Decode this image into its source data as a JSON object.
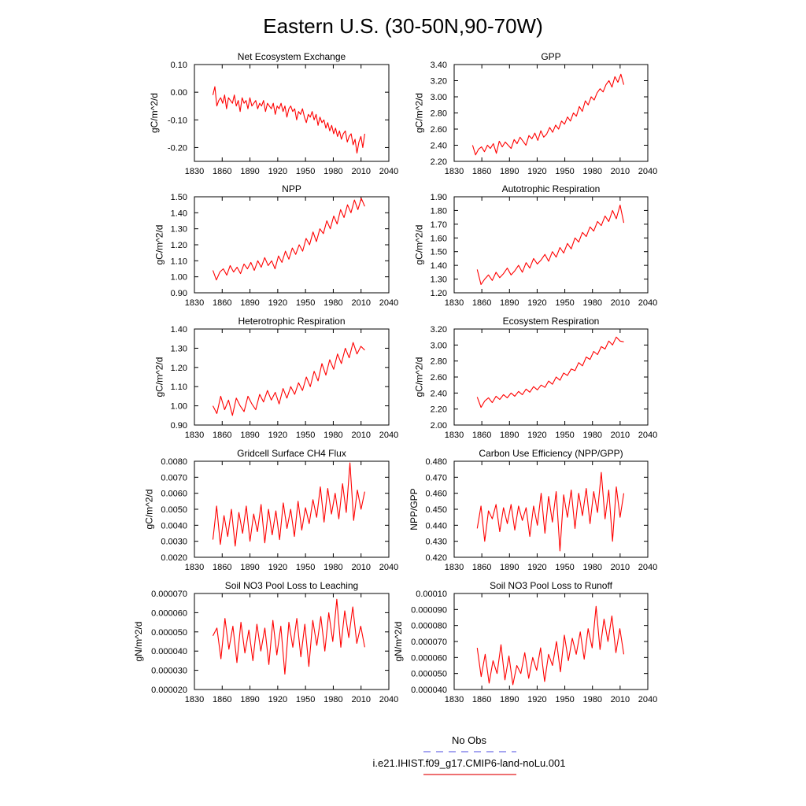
{
  "title": "Eastern U.S. (30-50N,90-70W)",
  "legend": {
    "entries": [
      {
        "label": "No Obs",
        "color": "#6f6fe6",
        "style": "dashed"
      },
      {
        "label": "i.e21.IHIST.f09_g17.CMIP6-land-noLu.001",
        "color": "#e41a1c",
        "style": "solid"
      }
    ]
  },
  "chart_data": [
    {
      "type": "line",
      "title": "Net Ecosystem Exchange",
      "ylabel": "gC/m^2/d",
      "xlim": [
        1830,
        2040
      ],
      "ylim": [
        -0.25,
        0.1
      ],
      "xticks": [
        "1830",
        "1860",
        "1890",
        "1920",
        "1950",
        "1980",
        "2010",
        "2040"
      ],
      "yticks": [
        "-0.20",
        "-0.10",
        "0.00",
        "0.10"
      ],
      "series": [
        {
          "color": "#ff0000",
          "x_start": 1850,
          "x_end": 2014,
          "values": [
            -0.01,
            0.02,
            -0.05,
            -0.03,
            -0.02,
            -0.04,
            -0.01,
            -0.06,
            -0.02,
            -0.03,
            -0.04,
            -0.01,
            -0.05,
            -0.03,
            -0.07,
            -0.02,
            -0.04,
            -0.03,
            -0.06,
            -0.02,
            -0.05,
            -0.04,
            -0.03,
            -0.06,
            -0.04,
            -0.05,
            -0.03,
            -0.07,
            -0.04,
            -0.05,
            -0.06,
            -0.04,
            -0.08,
            -0.05,
            -0.06,
            -0.04,
            -0.07,
            -0.05,
            -0.09,
            -0.06,
            -0.05,
            -0.07,
            -0.06,
            -0.1,
            -0.07,
            -0.08,
            -0.06,
            -0.09,
            -0.11,
            -0.08,
            -0.09,
            -0.07,
            -0.1,
            -0.08,
            -0.12,
            -0.09,
            -0.11,
            -0.1,
            -0.13,
            -0.11,
            -0.14,
            -0.12,
            -0.15,
            -0.13,
            -0.16,
            -0.14,
            -0.17,
            -0.15,
            -0.14,
            -0.18,
            -0.16,
            -0.15,
            -0.19,
            -0.17,
            -0.22,
            -0.18,
            -0.16,
            -0.2,
            -0.15
          ]
        }
      ]
    },
    {
      "type": "line",
      "title": "GPP",
      "ylabel": "gC/m^2/d",
      "xlim": [
        1830,
        2040
      ],
      "ylim": [
        2.2,
        3.4
      ],
      "xticks": [
        "1830",
        "1860",
        "1890",
        "1920",
        "1950",
        "1980",
        "2010",
        "2040"
      ],
      "yticks": [
        "2.20",
        "2.40",
        "2.60",
        "2.80",
        "3.00",
        "3.20",
        "3.40"
      ],
      "series": [
        {
          "color": "#ff0000",
          "x_start": 1850,
          "x_end": 2014,
          "values": [
            2.4,
            2.28,
            2.35,
            2.38,
            2.32,
            2.4,
            2.36,
            2.42,
            2.3,
            2.45,
            2.38,
            2.44,
            2.4,
            2.36,
            2.47,
            2.42,
            2.5,
            2.45,
            2.4,
            2.52,
            2.48,
            2.55,
            2.46,
            2.58,
            2.5,
            2.54,
            2.62,
            2.56,
            2.65,
            2.6,
            2.7,
            2.66,
            2.75,
            2.7,
            2.8,
            2.76,
            2.88,
            2.82,
            2.95,
            2.9,
            3.0,
            2.96,
            3.05,
            3.1,
            3.06,
            3.15,
            3.2,
            3.12,
            3.25,
            3.18,
            3.28,
            3.15
          ]
        }
      ]
    },
    {
      "type": "line",
      "title": "NPP",
      "ylabel": "gC/m^2/d",
      "xlim": [
        1830,
        2040
      ],
      "ylim": [
        0.9,
        1.5
      ],
      "xticks": [
        "1830",
        "1860",
        "1890",
        "1920",
        "1950",
        "1980",
        "2010",
        "2040"
      ],
      "yticks": [
        "0.90",
        "1.00",
        "1.10",
        "1.20",
        "1.30",
        "1.40",
        "1.50"
      ],
      "series": [
        {
          "color": "#ff0000",
          "x_start": 1850,
          "x_end": 2014,
          "values": [
            1.04,
            0.98,
            1.03,
            1.05,
            1.01,
            1.07,
            1.03,
            1.06,
            1.02,
            1.08,
            1.05,
            1.09,
            1.04,
            1.1,
            1.06,
            1.12,
            1.07,
            1.1,
            1.05,
            1.13,
            1.09,
            1.16,
            1.11,
            1.18,
            1.14,
            1.2,
            1.16,
            1.24,
            1.2,
            1.28,
            1.22,
            1.3,
            1.27,
            1.35,
            1.3,
            1.38,
            1.33,
            1.42,
            1.37,
            1.45,
            1.4,
            1.48,
            1.42,
            1.49,
            1.44
          ]
        }
      ]
    },
    {
      "type": "line",
      "title": "Autotrophic Respiration",
      "ylabel": "gC/m^2/d",
      "xlim": [
        1830,
        2040
      ],
      "ylim": [
        1.2,
        1.9
      ],
      "xticks": [
        "1830",
        "1860",
        "1890",
        "1920",
        "1950",
        "1980",
        "2010",
        "2040"
      ],
      "yticks": [
        "1.20",
        "1.30",
        "1.40",
        "1.50",
        "1.60",
        "1.70",
        "1.80",
        "1.90"
      ],
      "series": [
        {
          "color": "#ff0000",
          "x_start": 1855,
          "x_end": 2014,
          "values": [
            1.37,
            1.26,
            1.3,
            1.33,
            1.29,
            1.35,
            1.31,
            1.34,
            1.38,
            1.33,
            1.36,
            1.4,
            1.35,
            1.42,
            1.38,
            1.45,
            1.41,
            1.44,
            1.48,
            1.43,
            1.5,
            1.46,
            1.53,
            1.49,
            1.56,
            1.52,
            1.6,
            1.57,
            1.64,
            1.61,
            1.68,
            1.65,
            1.72,
            1.69,
            1.76,
            1.72,
            1.8,
            1.74,
            1.84,
            1.71
          ]
        }
      ]
    },
    {
      "type": "line",
      "title": "Heterotrophic Respiration",
      "ylabel": "gC/m^2/d",
      "xlim": [
        1830,
        2040
      ],
      "ylim": [
        0.9,
        1.4
      ],
      "xticks": [
        "1830",
        "1860",
        "1890",
        "1920",
        "1950",
        "1980",
        "2010",
        "2040"
      ],
      "yticks": [
        "0.90",
        "1.00",
        "1.10",
        "1.20",
        "1.30",
        "1.40"
      ],
      "series": [
        {
          "color": "#ff0000",
          "x_start": 1850,
          "x_end": 2014,
          "values": [
            1.0,
            0.96,
            1.05,
            0.98,
            1.03,
            0.95,
            1.04,
            1.0,
            0.97,
            1.05,
            1.01,
            0.98,
            1.06,
            1.02,
            1.08,
            1.03,
            1.07,
            1.01,
            1.09,
            1.04,
            1.1,
            1.06,
            1.12,
            1.08,
            1.15,
            1.1,
            1.18,
            1.13,
            1.22,
            1.16,
            1.24,
            1.19,
            1.27,
            1.22,
            1.3,
            1.25,
            1.33,
            1.27,
            1.31,
            1.29
          ]
        }
      ]
    },
    {
      "type": "line",
      "title": "Ecosystem Respiration",
      "ylabel": "gC/m^2/d",
      "xlim": [
        1830,
        2040
      ],
      "ylim": [
        2.0,
        3.2
      ],
      "xticks": [
        "1830",
        "1860",
        "1890",
        "1920",
        "1950",
        "1980",
        "2010",
        "2040"
      ],
      "yticks": [
        "2.00",
        "2.20",
        "2.40",
        "2.60",
        "2.80",
        "3.00",
        "3.20"
      ],
      "series": [
        {
          "color": "#ff0000",
          "x_start": 1855,
          "x_end": 2014,
          "values": [
            2.35,
            2.22,
            2.3,
            2.34,
            2.28,
            2.36,
            2.32,
            2.38,
            2.34,
            2.4,
            2.36,
            2.42,
            2.38,
            2.45,
            2.41,
            2.48,
            2.44,
            2.5,
            2.47,
            2.55,
            2.51,
            2.6,
            2.56,
            2.65,
            2.62,
            2.7,
            2.68,
            2.78,
            2.74,
            2.85,
            2.82,
            2.92,
            2.88,
            2.98,
            2.95,
            3.05,
            3.0,
            3.1,
            3.05,
            3.04
          ]
        }
      ]
    },
    {
      "type": "line",
      "title": "Gridcell Surface CH4 Flux",
      "ylabel": "gC/m^2/d",
      "xlim": [
        1830,
        2040
      ],
      "ylim": [
        0.002,
        0.008
      ],
      "xticks": [
        "1830",
        "1860",
        "1890",
        "1920",
        "1950",
        "1980",
        "2010",
        "2040"
      ],
      "yticks": [
        "0.0020",
        "0.0030",
        "0.0040",
        "0.0050",
        "0.0060",
        "0.0070",
        "0.0080"
      ],
      "series": [
        {
          "color": "#ff0000",
          "x_start": 1850,
          "x_end": 2014,
          "values": [
            0.0031,
            0.0052,
            0.0028,
            0.0046,
            0.0033,
            0.005,
            0.0027,
            0.0048,
            0.0035,
            0.0052,
            0.003,
            0.0047,
            0.0036,
            0.0053,
            0.0029,
            0.005,
            0.0034,
            0.0049,
            0.0031,
            0.0054,
            0.0038,
            0.005,
            0.0033,
            0.0055,
            0.0037,
            0.0051,
            0.0041,
            0.0056,
            0.0045,
            0.0064,
            0.0042,
            0.0063,
            0.0047,
            0.006,
            0.0044,
            0.0066,
            0.0048,
            0.0079,
            0.0043,
            0.0062,
            0.005,
            0.0061
          ]
        }
      ]
    },
    {
      "type": "line",
      "title": "Carbon Use Efficiency (NPP/GPP)",
      "ylabel": "NPP/GPP",
      "xlim": [
        1830,
        2040
      ],
      "ylim": [
        0.42,
        0.48
      ],
      "xticks": [
        "1830",
        "1860",
        "1890",
        "1920",
        "1950",
        "1980",
        "2010",
        "2040"
      ],
      "yticks": [
        "0.420",
        "0.430",
        "0.440",
        "0.450",
        "0.460",
        "0.470",
        "0.480"
      ],
      "series": [
        {
          "color": "#ff0000",
          "x_start": 1855,
          "x_end": 2014,
          "values": [
            0.438,
            0.452,
            0.43,
            0.449,
            0.444,
            0.453,
            0.436,
            0.451,
            0.441,
            0.453,
            0.437,
            0.452,
            0.443,
            0.451,
            0.433,
            0.452,
            0.44,
            0.46,
            0.435,
            0.458,
            0.442,
            0.461,
            0.424,
            0.459,
            0.445,
            0.462,
            0.438,
            0.46,
            0.446,
            0.463,
            0.441,
            0.461,
            0.448,
            0.473,
            0.444,
            0.462,
            0.43,
            0.464,
            0.445,
            0.46
          ]
        }
      ]
    },
    {
      "type": "line",
      "title": "Soil NO3 Pool Loss to Leaching",
      "ylabel": "gN/m^2/d",
      "xlim": [
        1830,
        2040
      ],
      "ylim": [
        2e-05,
        7e-05
      ],
      "xticks": [
        "1830",
        "1860",
        "1890",
        "1920",
        "1950",
        "1980",
        "2010",
        "2040"
      ],
      "yticks": [
        "0.000020",
        "0.000030",
        "0.000040",
        "0.000050",
        "0.000060",
        "0.000070"
      ],
      "series": [
        {
          "color": "#ff0000",
          "x_start": 1850,
          "x_end": 2014,
          "values": [
            4.8e-05,
            5.2e-05,
            3.6e-05,
            5.7e-05,
            4.1e-05,
            5.3e-05,
            3.4e-05,
            5.5e-05,
            3.9e-05,
            5.1e-05,
            3.5e-05,
            5.4e-05,
            4e-05,
            5.2e-05,
            3.3e-05,
            5.6e-05,
            3.8e-05,
            5.3e-05,
            2.8e-05,
            5.5e-05,
            4.2e-05,
            5.7e-05,
            3.7e-05,
            5.4e-05,
            3.2e-05,
            5.6e-05,
            4.3e-05,
            5.8e-05,
            4e-05,
            6e-05,
            4.5e-05,
            6.7e-05,
            4.2e-05,
            6.1e-05,
            4.7e-05,
            6.3e-05,
            4.4e-05,
            5.3e-05,
            4.2e-05
          ]
        }
      ]
    },
    {
      "type": "line",
      "title": "Soil NO3 Pool Loss to Runoff",
      "ylabel": "gN/m^2/d",
      "xlim": [
        1830,
        2040
      ],
      "ylim": [
        4e-05,
        0.0001
      ],
      "xticks": [
        "1830",
        "1860",
        "1890",
        "1920",
        "1950",
        "1980",
        "2010",
        "2040"
      ],
      "yticks": [
        "0.000040",
        "0.000050",
        "0.000060",
        "0.000070",
        "0.000080",
        "0.000090",
        "0.00010"
      ],
      "series": [
        {
          "color": "#ff0000",
          "x_start": 1855,
          "x_end": 2014,
          "values": [
            6.6e-05,
            4.8e-05,
            6.2e-05,
            4.4e-05,
            5.8e-05,
            5e-05,
            6.8e-05,
            4.6e-05,
            6.1e-05,
            4.3e-05,
            5.5e-05,
            5e-05,
            6.3e-05,
            4.7e-05,
            6e-05,
            5.2e-05,
            6.6e-05,
            4.5e-05,
            6.2e-05,
            5.5e-05,
            7e-05,
            5.1e-05,
            7.4e-05,
            5.8e-05,
            7.2e-05,
            6.2e-05,
            7.6e-05,
            5.9e-05,
            7.8e-05,
            6.6e-05,
            9.2e-05,
            6.5e-05,
            8.4e-05,
            7e-05,
            8.6e-05,
            6.3e-05,
            7.8e-05,
            6.2e-05
          ]
        }
      ]
    }
  ]
}
